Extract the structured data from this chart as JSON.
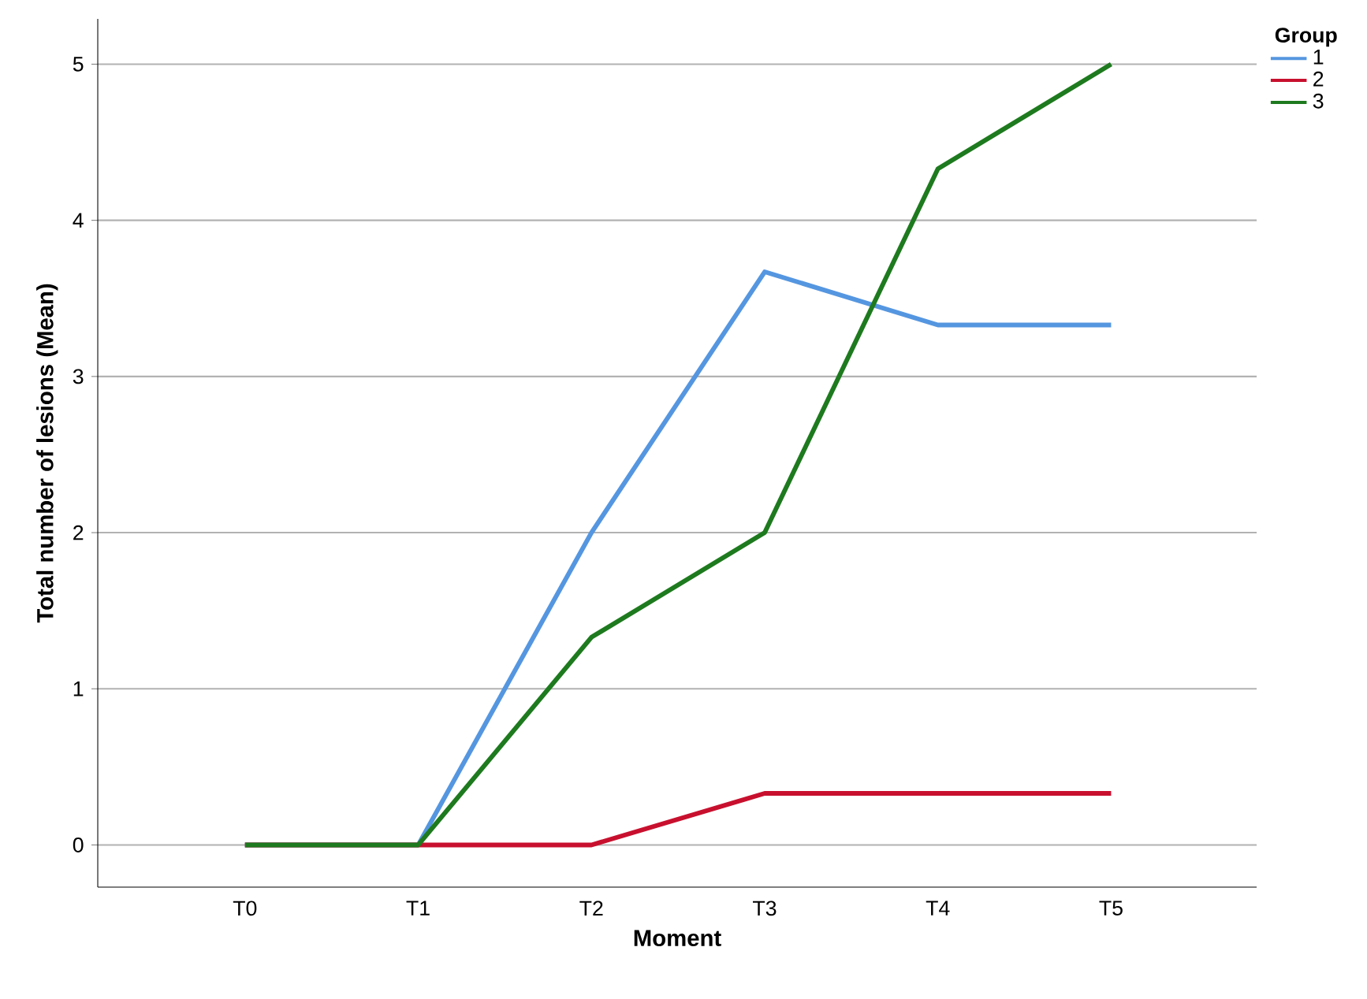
{
  "chart_data": {
    "type": "line",
    "xlabel": "Moment",
    "ylabel": "Total number of lesions (Mean)",
    "legend_title": "Group",
    "categories": [
      "T0",
      "T1",
      "T2",
      "T3",
      "T4",
      "T5"
    ],
    "series": [
      {
        "name": "1",
        "color": "#5596e0",
        "values": [
          0,
          0,
          2,
          3.67,
          3.33,
          3.33
        ]
      },
      {
        "name": "2",
        "color": "#c8102e",
        "values": [
          0,
          0,
          0,
          0.33,
          0.33,
          0.33
        ]
      },
      {
        "name": "3",
        "color": "#1e7a1e",
        "values": [
          0,
          0,
          1.33,
          2,
          4.33,
          5
        ]
      }
    ],
    "ylim": [
      -0.27,
      5.29
    ],
    "yticks": [
      0,
      1,
      2,
      3,
      4,
      5
    ],
    "grid": "y",
    "legend": "top right",
    "marker": "none",
    "line_style": "solid"
  }
}
